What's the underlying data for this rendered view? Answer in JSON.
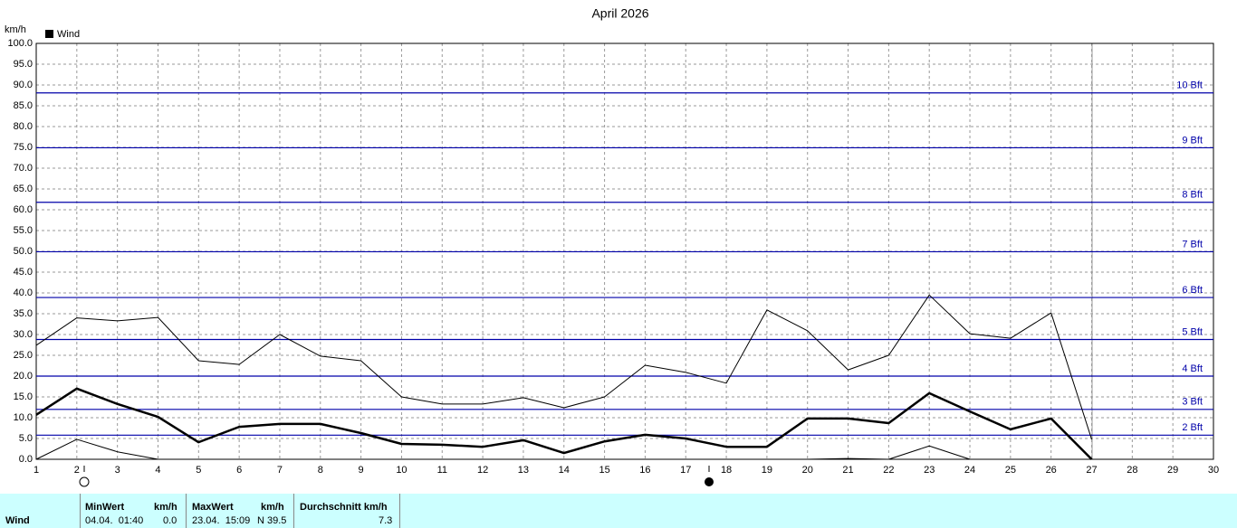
{
  "chart_data": {
    "type": "line",
    "title": "April 2026",
    "y_label": "km/h",
    "legend": "Wind",
    "x": [
      1,
      2,
      3,
      4,
      5,
      6,
      7,
      8,
      9,
      10,
      11,
      12,
      13,
      14,
      15,
      16,
      17,
      18,
      19,
      20,
      21,
      22,
      23,
      24,
      25,
      26,
      27
    ],
    "series": [
      {
        "color": "#000000",
        "line_width": 1,
        "values": [
          27.4,
          34,
          33.3,
          34.1,
          23.7,
          22.8,
          30,
          24.8,
          23.7,
          15,
          13.3,
          13.3,
          14.8,
          12.4,
          15,
          22.6,
          20.9,
          18.3,
          35.9,
          30.9,
          21.5,
          25,
          39.5,
          30.2,
          29.1,
          35.2,
          4.8
        ]
      },
      {
        "color": "#000000",
        "line_width": 2.5,
        "values": [
          10.7,
          17,
          13.3,
          10.2,
          4.1,
          7.8,
          8.5,
          8.5,
          6.3,
          3.7,
          3.5,
          3,
          4.6,
          1.5,
          4.3,
          5.9,
          5,
          3,
          3,
          9.8,
          9.8,
          8.7,
          15.9,
          11.5,
          7.2,
          9.8,
          0
        ]
      },
      {
        "color": "#000000",
        "line_width": 1,
        "values": [
          0,
          4.8,
          1.8,
          0,
          0,
          0,
          0,
          0,
          0,
          0,
          0,
          0,
          0,
          0,
          0,
          0,
          0,
          0,
          0,
          0,
          0.2,
          0,
          3.2,
          0,
          0,
          0,
          0
        ]
      }
    ],
    "xlim": [
      1,
      30
    ],
    "xticks": [
      1,
      2,
      3,
      4,
      5,
      6,
      7,
      8,
      9,
      10,
      11,
      12,
      13,
      14,
      15,
      16,
      17,
      18,
      19,
      20,
      21,
      22,
      23,
      24,
      25,
      26,
      27,
      28,
      29,
      30
    ],
    "ylim": [
      0,
      100
    ],
    "yticks": [
      {
        "value": 0,
        "label": "0.0"
      },
      {
        "value": 5,
        "label": "5.0"
      },
      {
        "value": 10,
        "label": "10.0"
      },
      {
        "value": 15,
        "label": "15.0"
      },
      {
        "value": 20,
        "label": "20.0"
      },
      {
        "value": 25,
        "label": "25.0"
      },
      {
        "value": 30,
        "label": "30.0"
      },
      {
        "value": 35,
        "label": "35.0"
      },
      {
        "value": 40,
        "label": "40.0"
      },
      {
        "value": 45,
        "label": "45.0"
      },
      {
        "value": 50,
        "label": "50.0"
      },
      {
        "value": 55,
        "label": "55.0"
      },
      {
        "value": 60,
        "label": "60.0"
      },
      {
        "value": 65,
        "label": "65.0"
      },
      {
        "value": 70,
        "label": "70.0"
      },
      {
        "value": 75,
        "label": "75.0"
      },
      {
        "value": 80,
        "label": "80.0"
      },
      {
        "value": 85,
        "label": "85.0"
      },
      {
        "value": 90,
        "label": "90.0"
      },
      {
        "value": 95,
        "label": "95.0"
      },
      {
        "value": 100,
        "label": "100.0"
      }
    ],
    "grid": true,
    "reference_color": "#0000aa",
    "reference_lines": [
      {
        "value": 5.8,
        "label": "2 Bft"
      },
      {
        "value": 12,
        "label": "3 Bft"
      },
      {
        "value": 20,
        "label": "4 Bft"
      },
      {
        "value": 28.8,
        "label": "5 Bft"
      },
      {
        "value": 38.9,
        "label": "6 Bft"
      },
      {
        "value": 49.9,
        "label": "7 Bft"
      },
      {
        "value": 61.8,
        "label": "8 Bft"
      },
      {
        "value": 74.9,
        "label": "9 Bft"
      },
      {
        "value": 88.1,
        "label": "10 Bft"
      }
    ]
  },
  "summary": {
    "row_label": "Wind",
    "min": {
      "header": "MinWert",
      "unit": "km/h",
      "time": "04.04.  01:40",
      "value": "0.0"
    },
    "max": {
      "header": "MaxWert",
      "unit": "km/h",
      "time": "23.04.  15:09",
      "value": "N 39.5"
    },
    "avg": {
      "header": "Durchschnitt km/h",
      "value": "7.3"
    }
  }
}
